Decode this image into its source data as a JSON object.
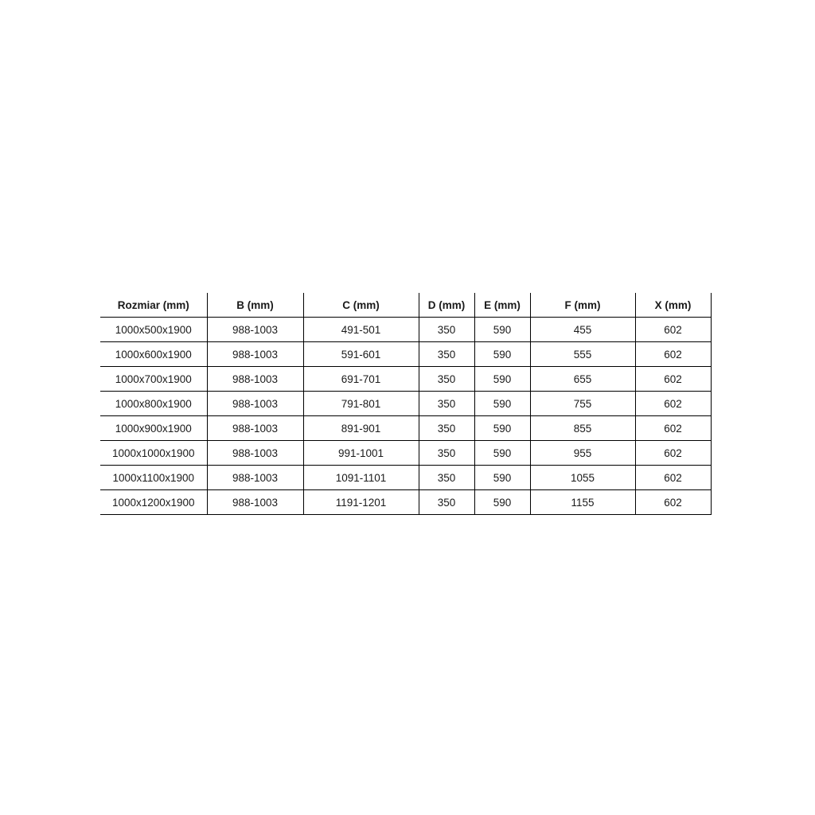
{
  "table": {
    "columns": [
      "Rozmiar (mm)",
      "B (mm)",
      "C (mm)",
      "D (mm)",
      "E (mm)",
      "F (mm)",
      "X (mm)"
    ],
    "rows": [
      [
        "1000x500x1900",
        "988-1003",
        "491-501",
        "350",
        "590",
        "455",
        "602"
      ],
      [
        "1000x600x1900",
        "988-1003",
        "591-601",
        "350",
        "590",
        "555",
        "602"
      ],
      [
        "1000x700x1900",
        "988-1003",
        "691-701",
        "350",
        "590",
        "655",
        "602"
      ],
      [
        "1000x800x1900",
        "988-1003",
        "791-801",
        "350",
        "590",
        "755",
        "602"
      ],
      [
        "1000x900x1900",
        "988-1003",
        "891-901",
        "350",
        "590",
        "855",
        "602"
      ],
      [
        "1000x1000x1900",
        "988-1003",
        "991-1001",
        "350",
        "590",
        "955",
        "602"
      ],
      [
        "1000x1100x1900",
        "988-1003",
        "1091-1101",
        "350",
        "590",
        "1055",
        "602"
      ],
      [
        "1000x1200x1900",
        "988-1003",
        "1191-1201",
        "350",
        "590",
        "1155",
        "602"
      ]
    ],
    "colors": {
      "border": "#000000",
      "text": "#1a1a1a",
      "background": "#ffffff"
    }
  }
}
